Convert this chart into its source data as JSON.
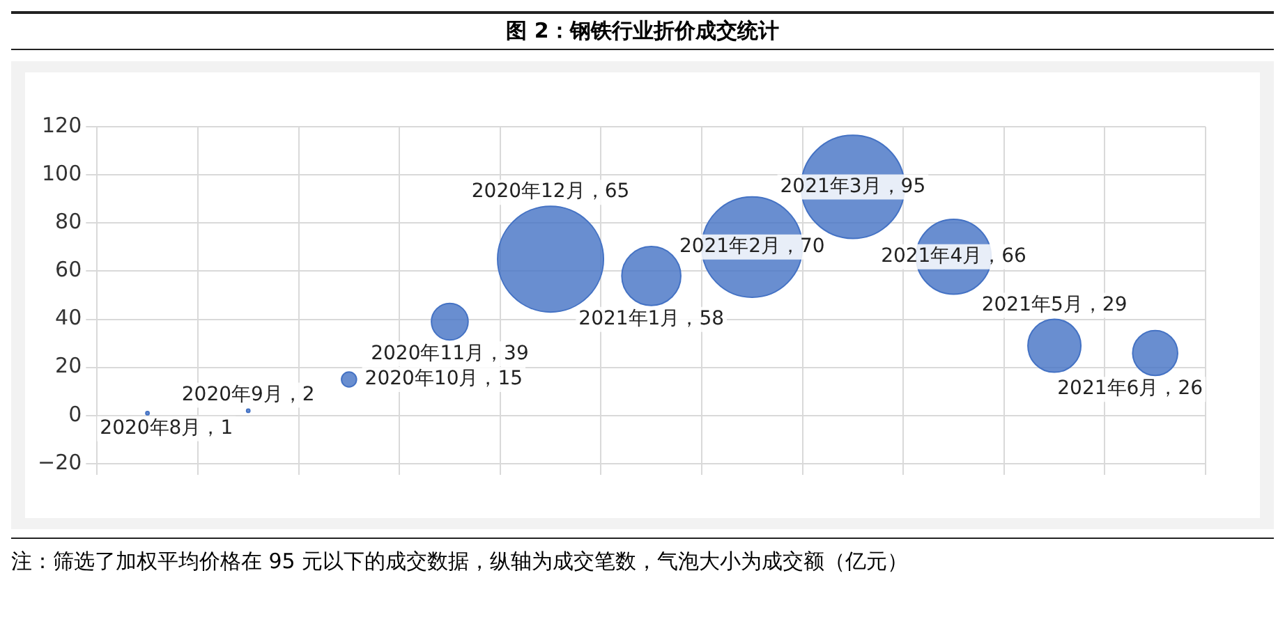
{
  "chart_data": {
    "type": "bubble",
    "title": "图 2：钢铁行业折价成交统计",
    "categories": [
      null,
      null,
      null,
      null,
      null,
      null,
      null,
      null,
      null,
      null,
      null
    ],
    "values": [
      1,
      2,
      15,
      39,
      65,
      58,
      70,
      95,
      66,
      29,
      26
    ],
    "sizes": [
      0.001,
      0.001,
      0.02,
      0.12,
      1,
      0.31,
      0.9,
      0.95,
      0.5,
      0.25,
      0.18
    ],
    "value_labels": [
      "2020年8月，1",
      "2020年9月，2",
      "2020年10月，15",
      "2020年11月，39",
      "2020年12月，65",
      "2021年1月，58",
      "2021年2月，70",
      "2021年3月，95",
      "2021年4月，66",
      "2021年5月，29",
      "2021年6月，26"
    ],
    "color": "#4472c4",
    "ylim": [
      -20,
      120
    ],
    "yticks": [
      -20,
      0,
      20,
      40,
      60,
      80,
      100,
      120
    ],
    "grid": true,
    "legend": false,
    "annotations": [
      "注：筛选了加权平均价格在 95 元以下的成交数据，纵轴为成交笔数，气泡大小为成交额（亿元）"
    ]
  }
}
